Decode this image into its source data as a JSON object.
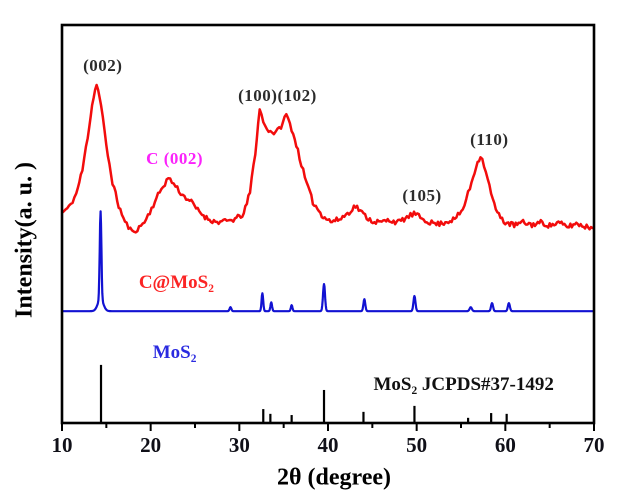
{
  "chart_data": {
    "type": "line",
    "description": "XRD patterns",
    "xlabel": "2θ (degree)",
    "ylabel": "Intensity(a. u. )",
    "xlim": [
      10,
      70
    ],
    "x_major_ticks": [
      10,
      20,
      30,
      40,
      50,
      60,
      70
    ],
    "x_minor_ticks": [
      15,
      25,
      35,
      45,
      55,
      65
    ],
    "x_tick_labels": [
      "10",
      "20",
      "30",
      "40",
      "50",
      "60",
      "70"
    ],
    "grid": false,
    "frame_color": "#000000",
    "series": [
      {
        "name": "C@MoS₂",
        "style": "noisy",
        "color": "#f20c0c",
        "noise_amplitude": 0.65,
        "noise_seed": 11,
        "label": {
          "text": "C@MoS₂",
          "x": 22.9,
          "y": 35.2,
          "color": "#fb2424"
        },
        "anchors": [
          [
            10,
            52.8
          ],
          [
            10.8,
            54.2
          ],
          [
            11.6,
            57.5
          ],
          [
            12.3,
            63.5
          ],
          [
            12.9,
            72.0
          ],
          [
            13.4,
            80.0
          ],
          [
            13.9,
            85.4
          ],
          [
            14.4,
            80.0
          ],
          [
            15.0,
            69.5
          ],
          [
            15.7,
            60.5
          ],
          [
            16.4,
            54.5
          ],
          [
            17.1,
            50.5
          ],
          [
            17.9,
            48.0
          ],
          [
            18.7,
            49.0
          ],
          [
            19.5,
            51.2
          ],
          [
            20.3,
            54.8
          ],
          [
            21.2,
            58.8
          ],
          [
            22.0,
            61.6
          ],
          [
            22.8,
            59.6
          ],
          [
            23.6,
            57.2
          ],
          [
            24.4,
            56.0
          ],
          [
            25.3,
            53.5
          ],
          [
            26.3,
            51.5
          ],
          [
            27.3,
            50.5
          ],
          [
            28.4,
            50.6
          ],
          [
            29.5,
            51.2
          ],
          [
            30.5,
            52.5
          ],
          [
            31.2,
            58.0
          ],
          [
            31.8,
            68.0
          ],
          [
            32.3,
            78.8
          ],
          [
            32.9,
            74.5
          ],
          [
            33.5,
            73.3
          ],
          [
            34.1,
            72.8
          ],
          [
            34.7,
            74.6
          ],
          [
            35.3,
            77.5
          ],
          [
            35.9,
            74.0
          ],
          [
            36.6,
            68.5
          ],
          [
            37.4,
            61.5
          ],
          [
            38.3,
            55.5
          ],
          [
            39.3,
            52.3
          ],
          [
            40.3,
            50.6
          ],
          [
            41.3,
            51.2
          ],
          [
            42.2,
            52.6
          ],
          [
            43.1,
            54.6
          ],
          [
            44.0,
            52.4
          ],
          [
            44.9,
            50.8
          ],
          [
            45.9,
            50.4
          ],
          [
            46.9,
            51.0
          ],
          [
            47.9,
            50.4
          ],
          [
            48.9,
            51.6
          ],
          [
            49.7,
            52.6
          ],
          [
            50.6,
            51.4
          ],
          [
            51.5,
            50.4
          ],
          [
            52.4,
            50.0
          ],
          [
            53.4,
            50.6
          ],
          [
            54.3,
            51.2
          ],
          [
            55.2,
            53.6
          ],
          [
            56.0,
            59.0
          ],
          [
            56.7,
            64.5
          ],
          [
            57.2,
            67.3
          ],
          [
            57.8,
            63.5
          ],
          [
            58.4,
            57.5
          ],
          [
            59.1,
            52.6
          ],
          [
            60.0,
            50.4
          ],
          [
            61.0,
            49.7
          ],
          [
            62.0,
            50.4
          ],
          [
            63.0,
            49.8
          ],
          [
            64.0,
            50.4
          ],
          [
            65.0,
            49.6
          ],
          [
            66.0,
            50.3
          ],
          [
            67.0,
            49.3
          ],
          [
            68.0,
            50.1
          ],
          [
            69.0,
            49.4
          ],
          [
            70,
            49.0
          ]
        ]
      },
      {
        "name": "MoS₂",
        "style": "peaks",
        "color": "#1212d2",
        "baseline": 28.1,
        "label": {
          "text": "MoS₂",
          "x": 22.7,
          "y": 17.6,
          "color": "#2a2ae0"
        },
        "peaks": [
          [
            14.35,
            22.1,
            0.13
          ],
          [
            14.35,
            3.0,
            0.45
          ],
          [
            29.0,
            1.0,
            0.14
          ],
          [
            32.6,
            4.5,
            0.13
          ],
          [
            33.6,
            2.2,
            0.13
          ],
          [
            35.9,
            1.5,
            0.13
          ],
          [
            39.55,
            6.8,
            0.16
          ],
          [
            44.1,
            3.0,
            0.15
          ],
          [
            49.75,
            3.8,
            0.16
          ],
          [
            56.1,
            1.0,
            0.18
          ],
          [
            58.5,
            2.0,
            0.16
          ],
          [
            60.4,
            2.0,
            0.16
          ]
        ]
      },
      {
        "name": "MoS₂ JCPDS#37-1492",
        "style": "sticks",
        "color": "#000000",
        "baseline": 0,
        "label": {
          "text": "MoS₂ JCPDS#37-1492",
          "x": 55.3,
          "y": 9.5,
          "color": "#111111"
        },
        "sticks": [
          [
            14.4,
            14.6
          ],
          [
            32.7,
            3.5
          ],
          [
            33.5,
            2.3
          ],
          [
            35.9,
            2.0
          ],
          [
            39.55,
            8.3
          ],
          [
            44.0,
            2.8
          ],
          [
            49.75,
            4.3
          ],
          [
            55.8,
            1.3
          ],
          [
            58.4,
            2.5
          ],
          [
            60.15,
            2.3
          ]
        ]
      }
    ],
    "peak_annotations": [
      {
        "text": "(002)",
        "x": 14.6,
        "y": 89.7,
        "color": "#2b2b2b"
      },
      {
        "text": "C (002)",
        "x": 22.7,
        "y": 66.3,
        "color": "#fb22fb"
      },
      {
        "text": "(100)(102)",
        "x": 34.3,
        "y": 82.2,
        "color": "#2b2b2b"
      },
      {
        "text": "(105)",
        "x": 50.6,
        "y": 57.0,
        "color": "#2b2b2b"
      },
      {
        "text": "(110)",
        "x": 58.2,
        "y": 71.1,
        "color": "#2b2b2b"
      }
    ]
  }
}
